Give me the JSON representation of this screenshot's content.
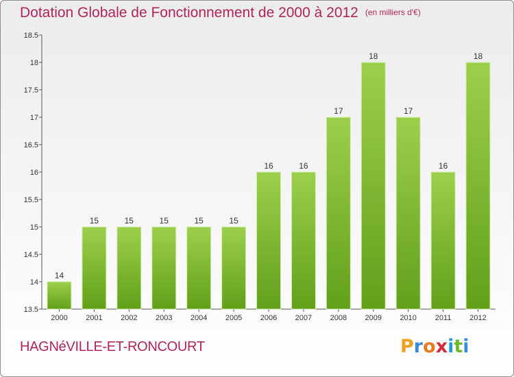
{
  "title": "Dotation Globale de Fonctionnement de 2000 à 2012",
  "subtitle": "(en milliers d'€)",
  "commune": "HAGNéVILLE-ET-RONCOURT",
  "logo": {
    "text": "Proxiti",
    "colors": [
      "#f0a020",
      "#3d8ad6",
      "#e87a1e",
      "#d22c3a",
      "#1f9bd7",
      "#6bb82c",
      "#3d8ad6"
    ]
  },
  "colors": {
    "accent": "#b0245a",
    "bar_light": "#9ccf4c",
    "bar_dark": "#62a01a"
  },
  "chart_data": {
    "type": "bar",
    "title": "Dotation Globale de Fonctionnement de 2000 à 2012",
    "categories": [
      "2000",
      "2001",
      "2002",
      "2003",
      "2004",
      "2005",
      "2006",
      "2007",
      "2008",
      "2009",
      "2010",
      "2011",
      "2012"
    ],
    "values": [
      14,
      15,
      15,
      15,
      15,
      15,
      16,
      16,
      17,
      18,
      17,
      16,
      18
    ],
    "value_labels": [
      "14",
      "15",
      "15",
      "15",
      "15",
      "15",
      "16",
      "16",
      "17",
      "18",
      "17",
      "16",
      "18"
    ],
    "ylim": [
      13.5,
      18.5
    ],
    "yticks": [
      "13.5",
      "14",
      "14.5",
      "15",
      "15.5",
      "16",
      "16.5",
      "17",
      "17.5",
      "18",
      "18.5"
    ],
    "grid": false,
    "xlabel": "",
    "ylabel": ""
  }
}
